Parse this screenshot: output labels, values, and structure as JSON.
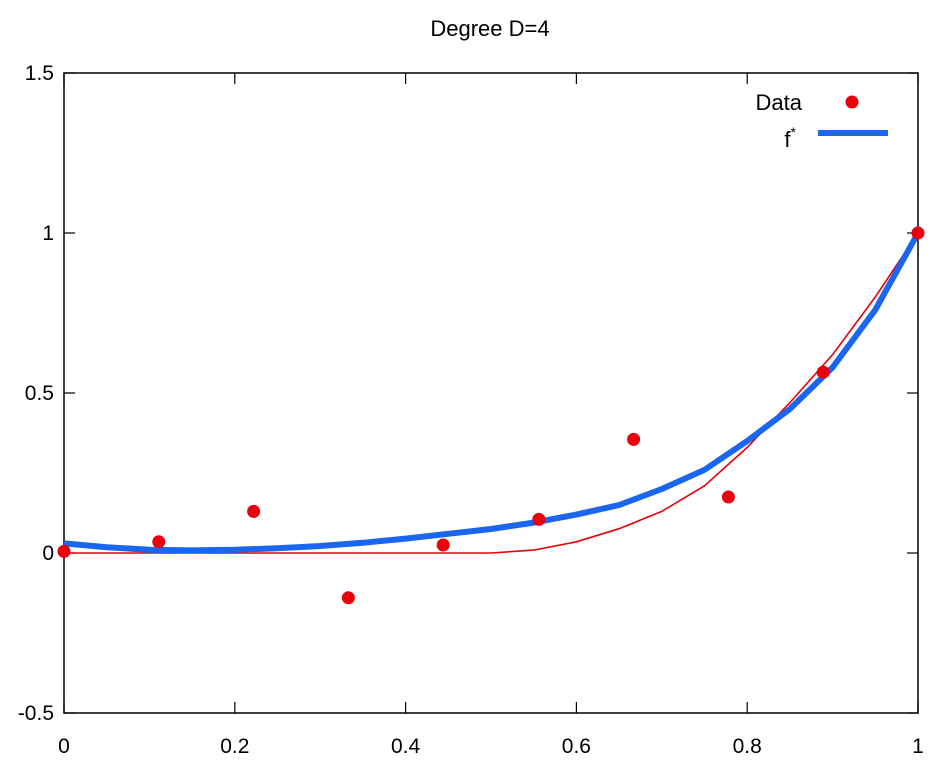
{
  "chart_data": {
    "type": "line",
    "title": "Degree D=4",
    "xlabel": "",
    "ylabel": "",
    "xlim": [
      0,
      1
    ],
    "ylim": [
      -0.5,
      1.5
    ],
    "x_ticks": [
      "0",
      "0.2",
      "0.4",
      "0.6",
      "0.8",
      "1"
    ],
    "x_tick_values": [
      0,
      0.2,
      0.4,
      0.6,
      0.8,
      1
    ],
    "y_ticks": [
      "-0.5",
      "0",
      "0.5",
      "1",
      "1.5"
    ],
    "y_tick_values": [
      -0.5,
      0,
      0.5,
      1,
      1.5
    ],
    "grid": false,
    "legend_position": "top-right",
    "series": [
      {
        "name": "Data",
        "kind": "scatter",
        "color": "#e8000b",
        "x": [
          0,
          0.111,
          0.222,
          0.333,
          0.444,
          0.556,
          0.667,
          0.778,
          0.889,
          1
        ],
        "y": [
          0.005,
          0.035,
          0.13,
          -0.14,
          0.025,
          0.105,
          0.355,
          0.175,
          0.565,
          1.0
        ]
      },
      {
        "name": "f",
        "name_superscript": "*",
        "kind": "line",
        "color": "#1a66f0",
        "x": [
          0,
          0.05,
          0.1,
          0.15,
          0.2,
          0.25,
          0.3,
          0.35,
          0.4,
          0.45,
          0.5,
          0.55,
          0.6,
          0.65,
          0.7,
          0.75,
          0.8,
          0.85,
          0.9,
          0.95,
          1
        ],
        "y": [
          0.03,
          0.018,
          0.01,
          0.008,
          0.01,
          0.015,
          0.022,
          0.032,
          0.045,
          0.06,
          0.075,
          0.095,
          0.12,
          0.15,
          0.2,
          0.26,
          0.35,
          0.45,
          0.58,
          0.76,
          1.0
        ]
      },
      {
        "kind": "line",
        "color": "#e8000b",
        "x": [
          0,
          0.1,
          0.2,
          0.3,
          0.4,
          0.5,
          0.55,
          0.6,
          0.65,
          0.7,
          0.75,
          0.8,
          0.85,
          0.9,
          0.95,
          1
        ],
        "y": [
          0,
          0,
          0,
          0,
          0,
          0,
          0.009,
          0.035,
          0.076,
          0.13,
          0.21,
          0.33,
          0.47,
          0.62,
          0.8,
          1.0
        ]
      }
    ]
  }
}
